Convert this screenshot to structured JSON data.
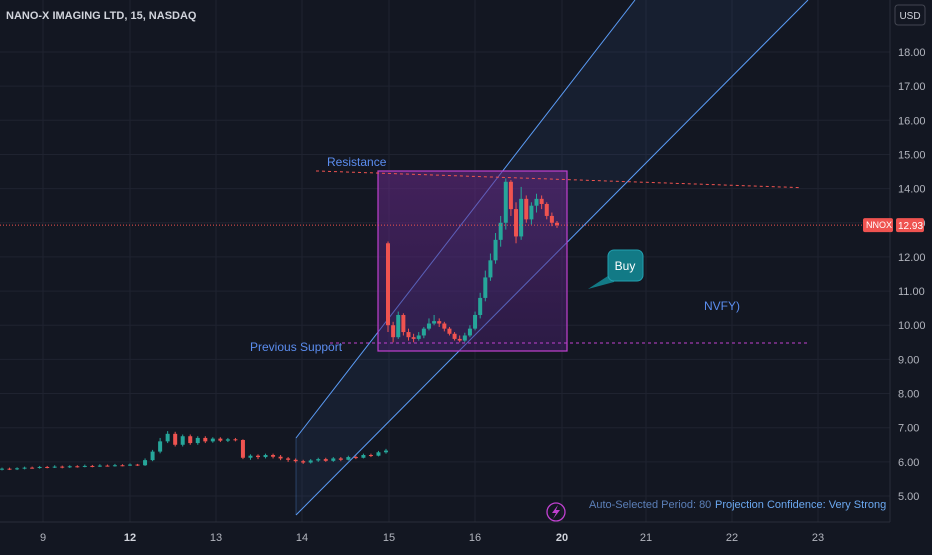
{
  "header": {
    "symbol_title": "NANO-X IMAGING LTD, 15, NASDAQ"
  },
  "currency_button": "USD",
  "price_tag": {
    "symbol": "NNOX",
    "price": "12.93"
  },
  "annotations": {
    "resistance": "Resistance",
    "previous_support": "Previous Support",
    "buy": "Buy",
    "nvfy": "NVFY)",
    "auto_period": "Auto-Selected Period: 80",
    "projection": "Projection Confidence: Very Strong"
  },
  "colors": {
    "background": "#131722",
    "up": "#26a69a",
    "down": "#ef5350",
    "channel": "#5b9cf6",
    "box": "#c040d0",
    "buy_bubble": "#127a86",
    "text_blue": "#5b8def"
  },
  "icons": {
    "bolt": "lightning-bolt-icon"
  },
  "chart_data": {
    "type": "candlestick",
    "title": "NANO-X IMAGING LTD, 15, NASDAQ",
    "y_axis": {
      "ticks": [
        "5.00",
        "6.00",
        "7.00",
        "8.00",
        "9.00",
        "10.00",
        "11.00",
        "12.00",
        "13.00",
        "14.00",
        "15.00",
        "16.00",
        "17.00",
        "18.00"
      ],
      "range": [
        4.5,
        19.2
      ],
      "currency": "USD"
    },
    "x_axis": {
      "ticks": [
        "9",
        "12",
        "13",
        "14",
        "15",
        "16",
        "20",
        "21",
        "22",
        "23"
      ],
      "bold_ticks": [
        "12",
        "20"
      ]
    },
    "last_price": 12.93,
    "candles": [
      [
        5.78,
        5.8,
        5.83,
        5.75
      ],
      [
        5.8,
        5.79,
        5.83,
        5.76
      ],
      [
        5.79,
        5.81,
        5.84,
        5.76
      ],
      [
        5.81,
        5.83,
        5.86,
        5.78
      ],
      [
        5.83,
        5.82,
        5.86,
        5.8
      ],
      [
        5.82,
        5.85,
        5.88,
        5.8
      ],
      [
        5.85,
        5.84,
        5.88,
        5.81
      ],
      [
        5.84,
        5.86,
        5.9,
        5.82
      ],
      [
        5.86,
        5.84,
        5.89,
        5.81
      ],
      [
        5.84,
        5.87,
        5.9,
        5.82
      ],
      [
        5.87,
        5.86,
        5.9,
        5.83
      ],
      [
        5.86,
        5.88,
        5.92,
        5.84
      ],
      [
        5.88,
        5.87,
        5.91,
        5.84
      ],
      [
        5.87,
        5.89,
        5.93,
        5.85
      ],
      [
        5.89,
        5.88,
        5.92,
        5.86
      ],
      [
        5.88,
        5.9,
        5.94,
        5.86
      ],
      [
        5.9,
        5.89,
        5.93,
        5.87
      ],
      [
        5.89,
        5.92,
        5.95,
        5.88
      ],
      [
        5.92,
        5.9,
        5.94,
        5.88
      ],
      [
        5.9,
        6.05,
        6.1,
        5.88
      ],
      [
        6.05,
        6.3,
        6.35,
        6.02
      ],
      [
        6.3,
        6.6,
        6.7,
        6.25
      ],
      [
        6.6,
        6.82,
        6.9,
        6.55
      ],
      [
        6.82,
        6.5,
        6.88,
        6.45
      ],
      [
        6.5,
        6.75,
        6.8,
        6.45
      ],
      [
        6.75,
        6.55,
        6.8,
        6.5
      ],
      [
        6.55,
        6.7,
        6.75,
        6.5
      ],
      [
        6.7,
        6.6,
        6.75,
        6.55
      ],
      [
        6.6,
        6.68,
        6.72,
        6.56
      ],
      [
        6.68,
        6.62,
        6.72,
        6.58
      ],
      [
        6.62,
        6.66,
        6.7,
        6.58
      ],
      [
        6.66,
        6.64,
        6.7,
        6.6
      ],
      [
        6.64,
        6.12,
        6.66,
        6.08
      ],
      [
        6.12,
        6.18,
        6.22,
        6.06
      ],
      [
        6.18,
        6.14,
        6.22,
        6.08
      ],
      [
        6.14,
        6.2,
        6.24,
        6.1
      ],
      [
        6.2,
        6.15,
        6.24,
        6.1
      ],
      [
        6.15,
        6.1,
        6.2,
        6.05
      ],
      [
        6.1,
        6.06,
        6.14,
        6.0
      ],
      [
        6.06,
        6.02,
        6.1,
        5.98
      ],
      [
        6.02,
        5.98,
        6.06,
        5.94
      ],
      [
        5.98,
        6.04,
        6.08,
        5.95
      ],
      [
        6.04,
        6.08,
        6.12,
        6.0
      ],
      [
        6.08,
        6.03,
        6.12,
        6.0
      ],
      [
        6.03,
        6.1,
        6.14,
        6.0
      ],
      [
        6.1,
        6.06,
        6.14,
        6.02
      ],
      [
        6.06,
        6.14,
        6.18,
        6.04
      ],
      [
        6.14,
        6.12,
        6.18,
        6.08
      ],
      [
        6.12,
        6.2,
        6.24,
        6.1
      ],
      [
        6.2,
        6.18,
        6.24,
        6.14
      ],
      [
        6.18,
        6.28,
        6.32,
        6.16
      ],
      [
        6.28,
        6.33,
        6.38,
        6.24
      ],
      [
        12.4,
        10.0,
        12.45,
        9.8
      ],
      [
        10.0,
        9.65,
        10.1,
        9.5
      ],
      [
        9.65,
        10.3,
        10.4,
        9.6
      ],
      [
        10.3,
        9.8,
        10.35,
        9.7
      ],
      [
        9.8,
        9.65,
        9.9,
        9.55
      ],
      [
        9.65,
        9.6,
        9.75,
        9.5
      ],
      [
        9.6,
        9.7,
        9.8,
        9.55
      ],
      [
        9.7,
        9.9,
        9.95,
        9.62
      ],
      [
        9.9,
        10.05,
        10.2,
        9.85
      ],
      [
        10.05,
        10.12,
        10.3,
        10.0
      ],
      [
        10.12,
        10.05,
        10.2,
        9.95
      ],
      [
        10.05,
        9.9,
        10.1,
        9.82
      ],
      [
        9.9,
        9.75,
        9.95,
        9.7
      ],
      [
        9.75,
        9.6,
        9.8,
        9.55
      ],
      [
        9.6,
        9.55,
        9.7,
        9.5
      ],
      [
        9.55,
        9.7,
        9.78,
        9.5
      ],
      [
        9.7,
        9.9,
        10.0,
        9.65
      ],
      [
        9.9,
        10.3,
        10.4,
        9.85
      ],
      [
        10.3,
        10.8,
        10.95,
        10.2
      ],
      [
        10.8,
        11.4,
        11.6,
        10.7
      ],
      [
        11.4,
        11.9,
        12.1,
        11.3
      ],
      [
        11.9,
        12.5,
        12.7,
        11.8
      ],
      [
        12.5,
        13.0,
        13.2,
        12.3
      ],
      [
        13.0,
        14.2,
        14.3,
        12.8
      ],
      [
        14.2,
        13.4,
        14.25,
        13.2
      ],
      [
        13.4,
        12.6,
        13.6,
        12.4
      ],
      [
        12.6,
        13.7,
        14.05,
        12.5
      ],
      [
        13.7,
        13.1,
        13.8,
        13.0
      ],
      [
        13.1,
        13.5,
        13.6,
        12.95
      ],
      [
        13.5,
        13.7,
        13.85,
        13.3
      ],
      [
        13.7,
        13.55,
        13.8,
        13.4
      ],
      [
        13.55,
        13.2,
        13.6,
        13.1
      ],
      [
        13.2,
        13.0,
        13.3,
        12.9
      ],
      [
        13.0,
        12.93,
        13.05,
        12.85
      ]
    ],
    "resistance_level": 14.4,
    "support_level": 9.48
  }
}
